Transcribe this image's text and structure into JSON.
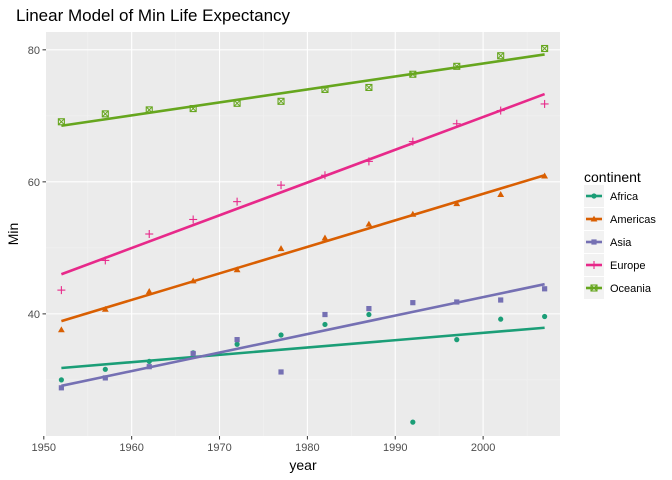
{
  "chart_data": {
    "type": "scatter",
    "title": "Linear Model of Min Life Expectancy",
    "xlabel": "year",
    "ylabel": "Min",
    "xlim": [
      1950.25,
      2008.75
    ],
    "ylim": [
      21.5,
      82.7
    ],
    "x_ticks": [
      1950,
      1960,
      1970,
      1980,
      1990,
      2000
    ],
    "y_ticks": [
      40,
      60,
      80
    ],
    "grid": true,
    "legend": {
      "title": "continent",
      "placement": "right"
    },
    "x": [
      1952,
      1957,
      1962,
      1967,
      1972,
      1977,
      1982,
      1987,
      1992,
      1997,
      2002,
      2007
    ],
    "series": [
      {
        "name": "Africa",
        "color": "#1b9e77",
        "marker": "circle",
        "values": [
          30.0,
          31.6,
          32.8,
          34.1,
          35.4,
          36.8,
          38.4,
          39.9,
          23.6,
          36.1,
          39.2,
          39.6
        ],
        "fit": [
          31.8,
          37.9
        ]
      },
      {
        "name": "Americas",
        "color": "#d95f02",
        "marker": "triangle",
        "values": [
          37.6,
          40.7,
          43.4,
          45.0,
          46.7,
          49.9,
          51.5,
          53.6,
          55.1,
          56.7,
          58.1,
          60.9
        ],
        "fit": [
          38.9,
          61.0
        ]
      },
      {
        "name": "Asia",
        "color": "#7570b3",
        "marker": "square",
        "values": [
          28.8,
          30.3,
          32.0,
          34.0,
          36.1,
          31.2,
          39.9,
          40.8,
          41.7,
          41.8,
          42.1,
          43.8
        ],
        "fit": [
          29.1,
          44.5
        ]
      },
      {
        "name": "Europe",
        "color": "#e7298a",
        "marker": "plus",
        "values": [
          43.6,
          48.1,
          52.1,
          54.3,
          57.0,
          59.5,
          61.0,
          63.1,
          66.1,
          68.8,
          70.8,
          71.8
        ],
        "fit": [
          46.0,
          73.3
        ]
      },
      {
        "name": "Oceania",
        "color": "#66a61e",
        "marker": "squarex",
        "values": [
          69.1,
          70.3,
          70.9,
          71.1,
          71.9,
          72.2,
          74.0,
          74.3,
          76.3,
          77.5,
          79.1,
          80.2
        ],
        "fit": [
          68.5,
          79.3
        ]
      }
    ]
  }
}
